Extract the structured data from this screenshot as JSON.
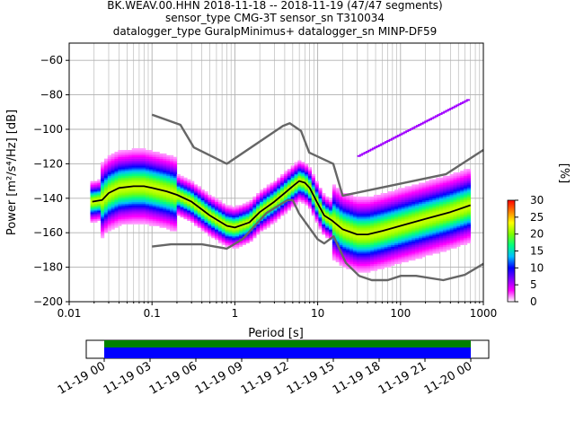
{
  "title_lines": [
    "BK.WEAV.00.HHN   2018-11-18 -- 2018-11-19  (47/47 segments)",
    "sensor_type CMG-3T sensor_sn T310034",
    "datalogger_type GuralpMinimus+ datalogger_sn MINP-DF59"
  ],
  "chart_data": [
    {
      "type": "heatmap",
      "name": "ppsd",
      "xlabel": "Period [s]",
      "ylabel": "Power [m²/s⁴/Hz] [dB]",
      "xscale": "log",
      "xlim": [
        0.01,
        1000
      ],
      "ylim": [
        -200,
        -50
      ],
      "x_ticks": [
        0.01,
        0.1,
        1,
        10,
        100,
        1000
      ],
      "x_tick_labels": [
        "0.01",
        "0.1",
        "1",
        "10",
        "100",
        "1000"
      ],
      "y_ticks": [
        -200,
        -180,
        -160,
        -140,
        -120,
        -100,
        -80,
        -60
      ],
      "grid": true,
      "colorbar": {
        "label": "[%]",
        "ticks": [
          0,
          5,
          10,
          15,
          20,
          25,
          30
        ],
        "range": [
          0,
          30
        ],
        "colors": [
          "#ffffff",
          "#ff00ff",
          "#8000ff",
          "#0000ff",
          "#00c0ff",
          "#00ff80",
          "#80ff00",
          "#ffff00",
          "#ff8000",
          "#ff0000"
        ]
      },
      "mean_curve": {
        "x": [
          0.019,
          0.025,
          0.03,
          0.04,
          0.06,
          0.08,
          0.1,
          0.15,
          0.2,
          0.3,
          0.5,
          0.8,
          1.0,
          1.5,
          2,
          3,
          4,
          5,
          6,
          7,
          8,
          10,
          12,
          15,
          20,
          30,
          40,
          60,
          100,
          200,
          400,
          700
        ],
        "y": [
          -142,
          -141,
          -137,
          -134,
          -133,
          -133,
          -134,
          -136,
          -138,
          -142,
          -150,
          -156,
          -157,
          -154,
          -148,
          -142,
          -137,
          -133,
          -130,
          -131,
          -134,
          -143,
          -150,
          -153,
          -158,
          -161,
          -161,
          -159,
          -156,
          -152,
          -148,
          -144
        ]
      },
      "nhnm": {
        "x": [
          0.1,
          0.22,
          0.32,
          0.8,
          3.8,
          4.6,
          6.3,
          7.9,
          15.4,
          20,
          354.8,
          1000
        ],
        "y": [
          -91.5,
          -97.4,
          -110.5,
          -120,
          -98,
          -96.5,
          -101,
          -113.5,
          -120,
          -138.5,
          -126,
          -112
        ]
      },
      "nlnm": {
        "x": [
          0.1,
          0.17,
          0.4,
          0.8,
          1.24,
          2.4,
          4.3,
          5,
          6,
          10,
          12,
          15.6,
          21.9,
          31.6,
          45,
          70,
          101,
          154,
          328,
          600,
          1000
        ],
        "y": [
          -168,
          -166.7,
          -166.7,
          -169.2,
          -163.7,
          -148.6,
          -141.1,
          -141.1,
          -149,
          -163.8,
          -166.2,
          -162.1,
          -177.5,
          -185,
          -187.5,
          -187.5,
          -185,
          -185,
          -187.5,
          -184.4,
          -178
        ]
      }
    },
    {
      "type": "timeline",
      "name": "data-coverage",
      "x_tick_labels": [
        "11-19 00",
        "11-19 03",
        "11-19 06",
        "11-19 09",
        "11-19 12",
        "11-19 15",
        "11-19 18",
        "11-19 21",
        "11-20 00"
      ],
      "coverage_start": "11-19 00",
      "coverage_end": "11-20 00",
      "colors": {
        "upper": "#008000",
        "lower": "#0000ff"
      }
    }
  ]
}
